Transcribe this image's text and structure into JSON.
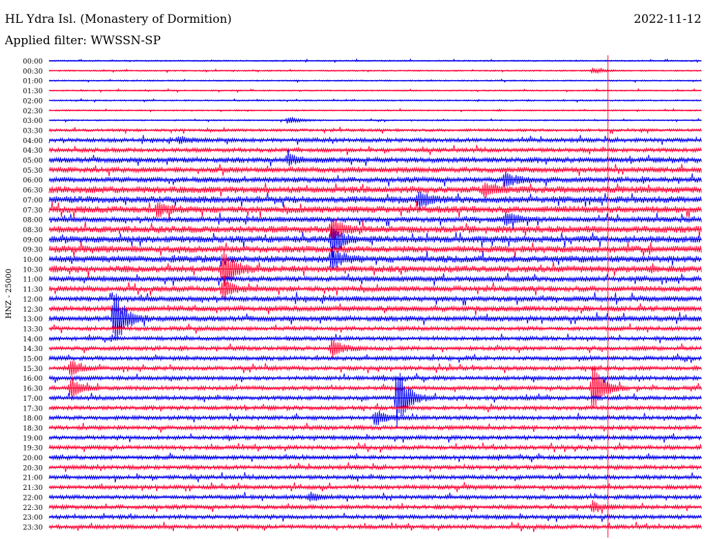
{
  "header": {
    "title": "HL Ydra Isl. (Monastery of Dormition)",
    "date": "2022-11-12",
    "filter": "Applied filter: WWSSN-SP"
  },
  "colors": {
    "trace_a": "#0000ee",
    "trace_b": "#ff0033",
    "marker": "#ff0033"
  },
  "chart_data": {
    "type": "line",
    "title": "HL Ydra Isl. (Monastery of Dormition)",
    "ylabel": "HNZ - 25000",
    "xlabel": "",
    "categories": [
      "00:00",
      "00:30",
      "01:00",
      "01:30",
      "02:00",
      "02:30",
      "03:00",
      "03:30",
      "04:00",
      "04:30",
      "05:00",
      "05:30",
      "06:00",
      "06:30",
      "07:00",
      "07:30",
      "08:00",
      "08:30",
      "09:00",
      "09:30",
      "10:00",
      "10:30",
      "11:00",
      "11:30",
      "12:00",
      "12:30",
      "13:00",
      "13:30",
      "14:00",
      "14:30",
      "15:00",
      "15:30",
      "16:00",
      "16:30",
      "17:00",
      "17:30",
      "18:00",
      "18:30",
      "19:00",
      "19:30",
      "20:00",
      "20:30",
      "21:00",
      "21:30",
      "22:00",
      "22:30",
      "23:00",
      "23:30"
    ],
    "trace_colors": [
      "#0000ee",
      "#ff0033"
    ],
    "noise_level": [
      1,
      1,
      1,
      1,
      1,
      1,
      1,
      2,
      3,
      3,
      4,
      4,
      4,
      5,
      5,
      5,
      4,
      5,
      5,
      5,
      5,
      5,
      4,
      4,
      4,
      4,
      4,
      3,
      3,
      3,
      3,
      3,
      3,
      3,
      3,
      3,
      3,
      3,
      3,
      3,
      3,
      3,
      3,
      3,
      3,
      3,
      3,
      3
    ],
    "events": [
      {
        "row": 1,
        "minute": 25,
        "amp": 4
      },
      {
        "row": 6,
        "minute": 11,
        "amp": 6
      },
      {
        "row": 8,
        "minute": 6,
        "amp": 5
      },
      {
        "row": 10,
        "minute": 11,
        "amp": 8
      },
      {
        "row": 12,
        "minute": 21,
        "amp": 12
      },
      {
        "row": 13,
        "minute": 20,
        "amp": 10
      },
      {
        "row": 14,
        "minute": 17,
        "amp": 12
      },
      {
        "row": 15,
        "minute": 5,
        "amp": 10
      },
      {
        "row": 16,
        "minute": 21,
        "amp": 10
      },
      {
        "row": 17,
        "minute": 13,
        "amp": 18
      },
      {
        "row": 18,
        "minute": 13,
        "amp": 20
      },
      {
        "row": 20,
        "minute": 13,
        "amp": 16
      },
      {
        "row": 21,
        "minute": 8,
        "amp": 30
      },
      {
        "row": 23,
        "minute": 8,
        "amp": 14
      },
      {
        "row": 26,
        "minute": 3,
        "amp": 45
      },
      {
        "row": 29,
        "minute": 13,
        "amp": 14
      },
      {
        "row": 31,
        "minute": 1,
        "amp": 12
      },
      {
        "row": 33,
        "minute": 1,
        "amp": 14
      },
      {
        "row": 34,
        "minute": 16,
        "amp": 48
      },
      {
        "row": 36,
        "minute": 15,
        "amp": 12
      },
      {
        "row": 33,
        "minute": 25,
        "amp": 40
      },
      {
        "row": 44,
        "minute": 12,
        "amp": 6
      },
      {
        "row": 45,
        "minute": 25,
        "amp": 8
      }
    ],
    "marker_minute": 25.7,
    "grid": false,
    "legend": "none"
  }
}
